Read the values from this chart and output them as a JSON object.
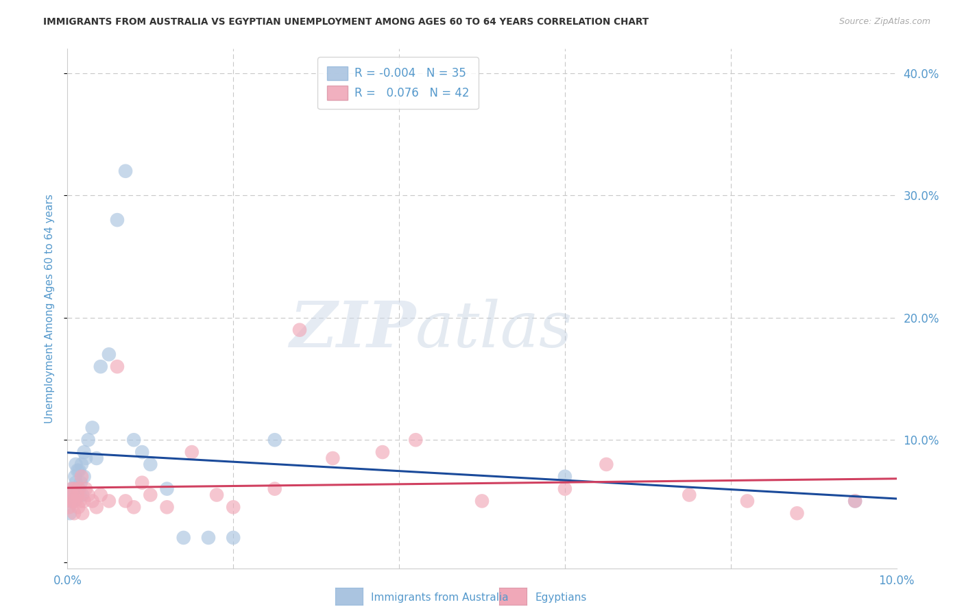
{
  "title": "IMMIGRANTS FROM AUSTRALIA VS EGYPTIAN UNEMPLOYMENT AMONG AGES 60 TO 64 YEARS CORRELATION CHART",
  "source": "Source: ZipAtlas.com",
  "ylabel": "Unemployment Among Ages 60 to 64 years",
  "xlim": [
    0.0,
    0.1
  ],
  "ylim": [
    -0.005,
    0.42
  ],
  "grid_color": "#c8c8c8",
  "background_color": "#ffffff",
  "watermark_zip": "ZIP",
  "watermark_atlas": "atlas",
  "legend_r1": "R = -0.004",
  "legend_n1": "N = 35",
  "legend_r2": "R =  0.076",
  "legend_n2": "N = 42",
  "blue_color": "#aac4e0",
  "pink_color": "#f0a8b8",
  "line_blue": "#1a4a9a",
  "line_pink": "#d04060",
  "title_color": "#333333",
  "axis_color": "#5599cc",
  "australia_x": [
    0.0003,
    0.0005,
    0.0006,
    0.0007,
    0.0008,
    0.0009,
    0.001,
    0.001,
    0.0012,
    0.0013,
    0.0014,
    0.0015,
    0.0016,
    0.0017,
    0.0018,
    0.002,
    0.002,
    0.0022,
    0.0025,
    0.003,
    0.0035,
    0.004,
    0.005,
    0.006,
    0.007,
    0.008,
    0.009,
    0.01,
    0.012,
    0.014,
    0.017,
    0.02,
    0.025,
    0.06,
    0.095
  ],
  "australia_y": [
    0.04,
    0.05,
    0.06,
    0.055,
    0.05,
    0.07,
    0.065,
    0.08,
    0.075,
    0.06,
    0.075,
    0.055,
    0.065,
    0.08,
    0.055,
    0.09,
    0.07,
    0.085,
    0.1,
    0.11,
    0.085,
    0.16,
    0.17,
    0.28,
    0.32,
    0.1,
    0.09,
    0.08,
    0.06,
    0.02,
    0.02,
    0.02,
    0.1,
    0.07,
    0.05
  ],
  "egypt_x": [
    0.0002,
    0.0003,
    0.0005,
    0.0006,
    0.0007,
    0.0008,
    0.0009,
    0.001,
    0.0012,
    0.0013,
    0.0014,
    0.0015,
    0.0017,
    0.0018,
    0.002,
    0.0022,
    0.0025,
    0.003,
    0.0035,
    0.004,
    0.005,
    0.006,
    0.007,
    0.008,
    0.009,
    0.01,
    0.012,
    0.015,
    0.018,
    0.02,
    0.025,
    0.028,
    0.032,
    0.038,
    0.042,
    0.05,
    0.06,
    0.065,
    0.075,
    0.082,
    0.088,
    0.095
  ],
  "egypt_y": [
    0.045,
    0.05,
    0.06,
    0.055,
    0.05,
    0.04,
    0.06,
    0.05,
    0.055,
    0.045,
    0.06,
    0.05,
    0.07,
    0.04,
    0.05,
    0.06,
    0.055,
    0.05,
    0.045,
    0.055,
    0.05,
    0.16,
    0.05,
    0.045,
    0.065,
    0.055,
    0.045,
    0.09,
    0.055,
    0.045,
    0.06,
    0.19,
    0.085,
    0.09,
    0.1,
    0.05,
    0.06,
    0.08,
    0.055,
    0.05,
    0.04,
    0.05
  ],
  "blue_trendline": [
    0.0886,
    0.0852
  ],
  "pink_trendline": [
    0.0485,
    0.075
  ]
}
